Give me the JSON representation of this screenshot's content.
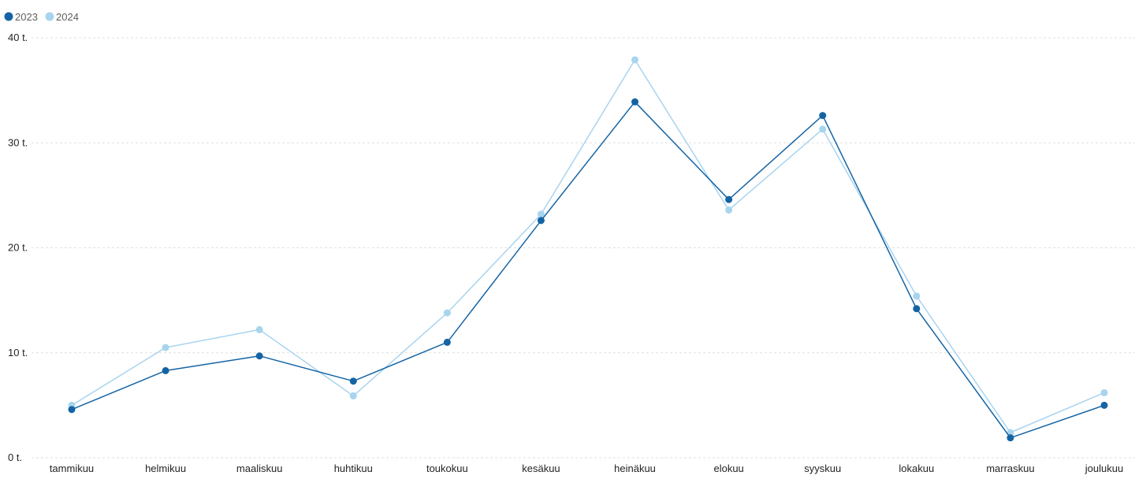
{
  "chart_data": {
    "type": "line",
    "title": "",
    "xlabel": "",
    "ylabel": "",
    "categories": [
      "tammikuu",
      "helmikuu",
      "maaliskuu",
      "huhtikuu",
      "toukokuu",
      "kesäkuu",
      "heinäkuu",
      "elokuu",
      "syyskuu",
      "lokakuu",
      "marraskuu",
      "joulukuu"
    ],
    "series": [
      {
        "name": "2023",
        "color": "#1464a5",
        "values": [
          4600,
          8300,
          9700,
          7300,
          11000,
          22600,
          33900,
          24600,
          32600,
          14200,
          1900,
          5000
        ]
      },
      {
        "name": "2024",
        "color": "#a8d4ee",
        "values": [
          5000,
          10500,
          12200,
          5900,
          13800,
          23200,
          37900,
          23600,
          31300,
          15400,
          2400,
          6200
        ]
      }
    ],
    "ylim": [
      0,
      40000
    ],
    "yticks": [
      {
        "value": 0,
        "label": "0 t."
      },
      {
        "value": 10000,
        "label": "10 t."
      },
      {
        "value": 20000,
        "label": "20 t."
      },
      {
        "value": 30000,
        "label": "30 t."
      },
      {
        "value": 40000,
        "label": "40 t."
      }
    ],
    "grid": true,
    "legend_position": "top-left"
  }
}
